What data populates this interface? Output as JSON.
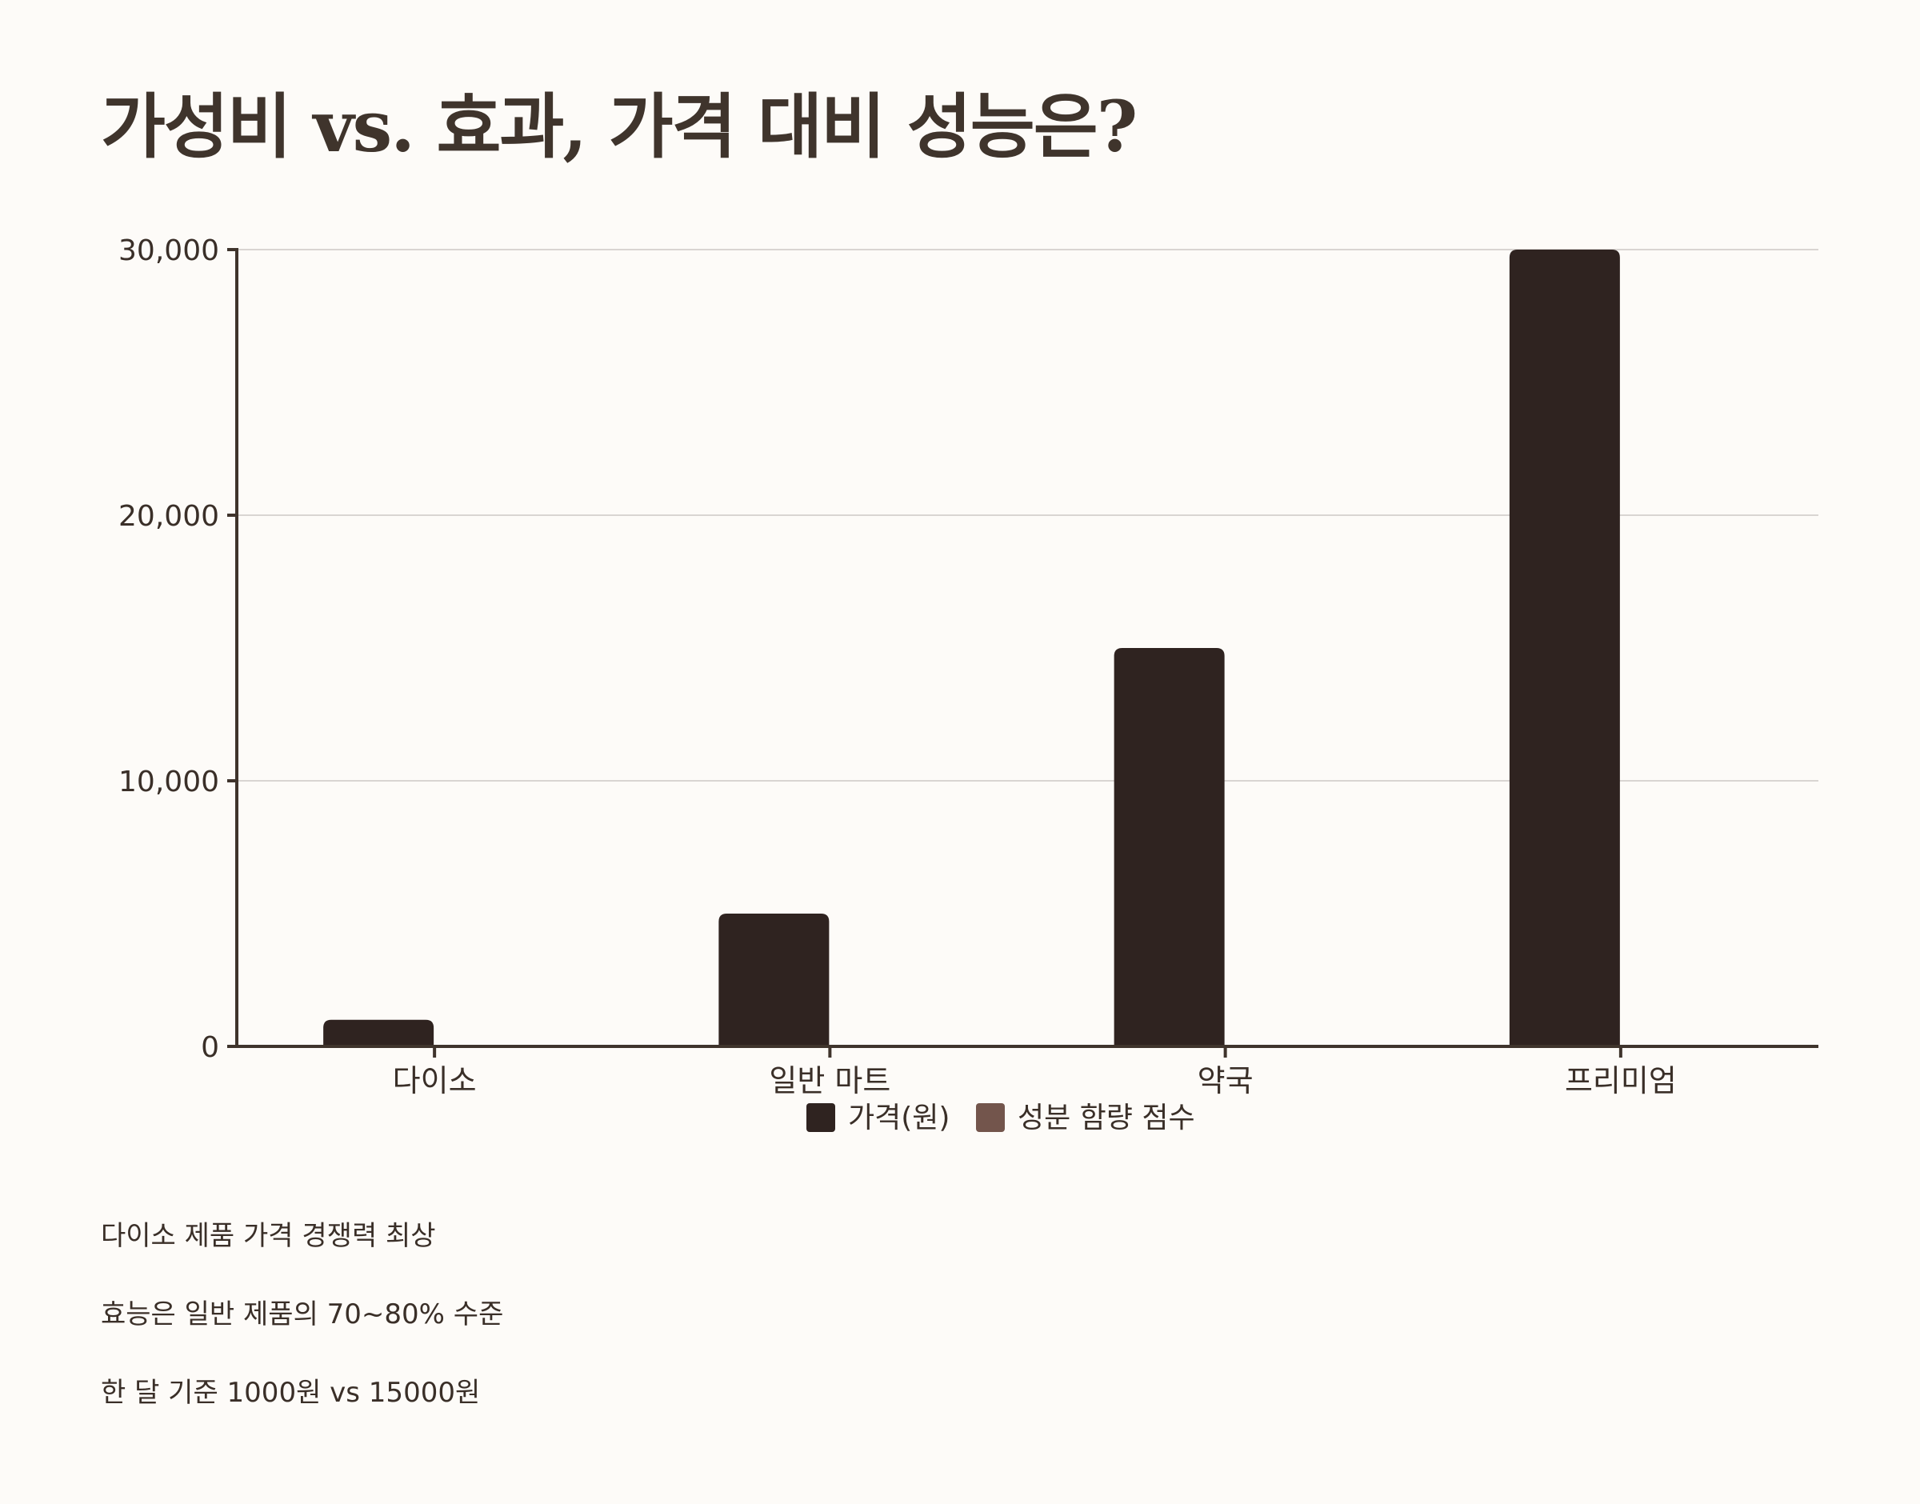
{
  "title": "가성비 vs. 효과, 가격 대비 성능은?",
  "colors": {
    "background": "#fdfbf8",
    "axis": "#3f342c",
    "grid": "#d9d5d2",
    "text": "#3a2f28",
    "series_price": "#2f2320",
    "series_score": "#73554c"
  },
  "chart_data": {
    "type": "bar",
    "categories": [
      "다이소",
      "일반 마트",
      "약국",
      "프리미엄"
    ],
    "series": [
      {
        "name": "가격(원)",
        "values": [
          1000,
          5000,
          15000,
          30000
        ],
        "color": "#2f2320"
      },
      {
        "name": "성분 함량 점수",
        "values": [
          0,
          0,
          0,
          0
        ],
        "color": "#73554c"
      }
    ],
    "ylim": [
      0,
      30000
    ],
    "yticks": [
      0,
      10000,
      20000,
      30000
    ],
    "ytick_labels": [
      "0",
      "10,000",
      "20,000",
      "30,000"
    ],
    "xlabel": "",
    "ylabel": "",
    "grid": true,
    "legend": "bottom-center"
  },
  "notes": [
    "다이소 제품 가격 경쟁력 최상",
    "효능은 일반 제품의 70~80% 수준",
    "한 달 기준 1000원 vs 15000원"
  ]
}
